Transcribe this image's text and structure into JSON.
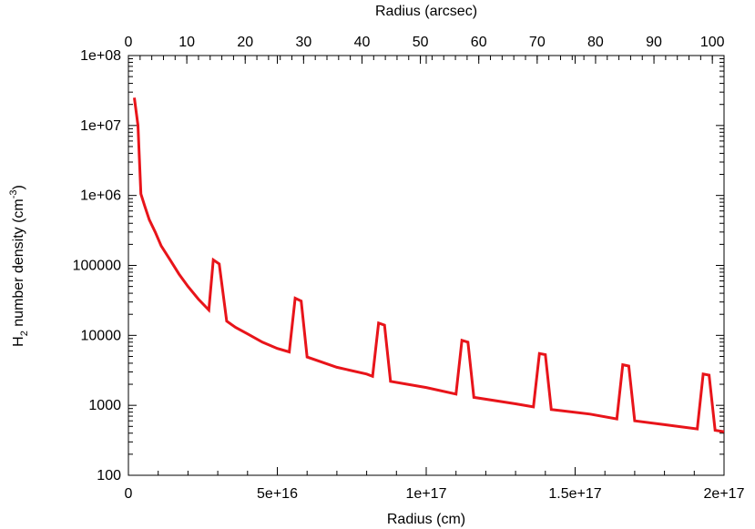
{
  "chart_data": {
    "type": "line",
    "xlabel": "Radius (cm)",
    "x2label": "Radius (arcsec)",
    "ylabel": {
      "main": "H",
      "sub": "2",
      "rest": " number density (cm",
      "sup": "-3",
      "end": ")"
    },
    "xlim": [
      0,
      2e+17
    ],
    "x2lim": [
      0,
      102
    ],
    "ylim": [
      100,
      100000000
    ],
    "yscale": "log",
    "grid": false,
    "x_ticks": [
      {
        "value": 0,
        "label": "0"
      },
      {
        "value": 5e+16,
        "label": "5e+16"
      },
      {
        "value": 1e+17,
        "label": "1e+17"
      },
      {
        "value": 1.5e+17,
        "label": "1.5e+17"
      },
      {
        "value": 2e+17,
        "label": "2e+17"
      }
    ],
    "x2_ticks": [
      {
        "value": 0,
        "label": "0"
      },
      {
        "value": 10,
        "label": "10"
      },
      {
        "value": 20,
        "label": "20"
      },
      {
        "value": 30,
        "label": "30"
      },
      {
        "value": 40,
        "label": "40"
      },
      {
        "value": 50,
        "label": "50"
      },
      {
        "value": 60,
        "label": "60"
      },
      {
        "value": 70,
        "label": "70"
      },
      {
        "value": 80,
        "label": "80"
      },
      {
        "value": 90,
        "label": "90"
      },
      {
        "value": 100,
        "label": "100"
      }
    ],
    "y_ticks": [
      {
        "value": 100,
        "label": "100"
      },
      {
        "value": 1000,
        "label": "1000"
      },
      {
        "value": 10000,
        "label": "10000"
      },
      {
        "value": 100000,
        "label": "100000"
      },
      {
        "value": 1000000,
        "label": "1e+06"
      },
      {
        "value": 10000000,
        "label": "1e+07"
      },
      {
        "value": 100000000,
        "label": "1e+08"
      }
    ],
    "series": [
      {
        "color": "#e8141a",
        "x": [
          2000000000000000.0,
          3200000000000000.0,
          4200000000000000.0,
          5500000000000000.0,
          7000000000000000.0,
          9000000000000000.0,
          1.1e+16,
          1.4e+16,
          1.7e+16,
          2e+16,
          2.35e+16,
          2.7e+16,
          2.85e+16,
          3.05e+16,
          3.3e+16,
          3.6e+16,
          4e+16,
          4.5e+16,
          5e+16,
          5.4e+16,
          5.6e+16,
          5.8e+16,
          6e+16,
          7e+16,
          8e+16,
          8.2e+16,
          8.4e+16,
          8.6e+16,
          8.8e+16,
          1e+17,
          1.1e+17,
          1.12e+17,
          1.14e+17,
          1.16e+17,
          1.3e+17,
          1.36e+17,
          1.38e+17,
          1.4e+17,
          1.42e+17,
          1.55e+17,
          1.64e+17,
          1.66e+17,
          1.68e+17,
          1.7e+17,
          1.8e+17,
          1.91e+17,
          1.93e+17,
          1.95e+17,
          1.97e+17,
          2e+17
        ],
        "y": [
          25000000,
          10000000,
          1050000,
          700000,
          450000,
          300000,
          190000,
          120000,
          75000,
          50000,
          33000,
          23000,
          120000,
          105000,
          16000,
          13000,
          10500,
          8000,
          6500,
          5800,
          34000,
          31000,
          4900,
          3500,
          2800,
          2600,
          15000,
          14000,
          2200,
          1800,
          1450,
          8500,
          8000,
          1300,
          1050,
          950,
          5500,
          5300,
          870,
          750,
          640,
          3800,
          3650,
          600,
          530,
          460,
          2800,
          2700,
          440,
          420
        ]
      }
    ]
  }
}
